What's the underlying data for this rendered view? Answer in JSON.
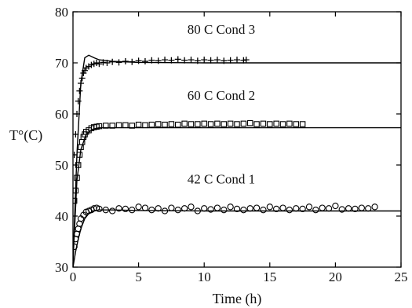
{
  "chart_data": {
    "type": "scatter",
    "title": "",
    "xlabel": "Time (h)",
    "ylabel": "T°(C)",
    "xlim": [
      0,
      25
    ],
    "ylim": [
      30,
      80
    ],
    "xticks": [
      0,
      5,
      10,
      15,
      20,
      25
    ],
    "yticks": [
      30,
      40,
      50,
      60,
      70,
      80
    ],
    "grid": false,
    "legend": "none",
    "annotations": [
      {
        "text": "80 C Cond 3",
        "x": 11.3,
        "y": 75.7
      },
      {
        "text": "60 C Cond 2",
        "x": 11.3,
        "y": 62.8
      },
      {
        "text": "42 C Cond 1",
        "x": 11.3,
        "y": 46.4
      }
    ],
    "series": [
      {
        "marker": "plus",
        "color": "#000000",
        "x": [
          0.1,
          0.2,
          0.3,
          0.4,
          0.5,
          0.6,
          0.7,
          0.8,
          0.9,
          1.0,
          1.2,
          1.4,
          1.6,
          1.8,
          2.0,
          2.3,
          2.6,
          3.0,
          3.5,
          4.0,
          4.5,
          5.0,
          5.5,
          6.0,
          6.5,
          7.0,
          7.5,
          8.0,
          8.5,
          9.0,
          9.5,
          10.0,
          10.5,
          11.0,
          11.5,
          12.0,
          12.5,
          13.0,
          13.2
        ],
        "y": [
          52.0,
          56.0,
          60.0,
          62.5,
          64.5,
          66.0,
          67.0,
          68.0,
          68.5,
          69.0,
          69.3,
          69.6,
          69.8,
          70.0,
          69.8,
          70.1,
          70.0,
          70.2,
          70.1,
          70.3,
          70.2,
          70.4,
          70.3,
          70.5,
          70.4,
          70.6,
          70.5,
          70.7,
          70.5,
          70.6,
          70.4,
          70.6,
          70.5,
          70.6,
          70.4,
          70.5,
          70.6,
          70.5,
          70.6
        ],
        "fit": {
          "x": [
            0,
            0.3,
            0.6,
            0.9,
            1.2,
            1.6,
            2.0,
            3.0,
            5.0,
            10.0,
            25.0
          ],
          "y": [
            31,
            52,
            66,
            71,
            71.5,
            71.0,
            70.6,
            70.3,
            70.1,
            70.0,
            70.0
          ]
        }
      },
      {
        "marker": "square",
        "color": "#000000",
        "x": [
          0.1,
          0.2,
          0.3,
          0.4,
          0.5,
          0.6,
          0.7,
          0.8,
          0.9,
          1.0,
          1.2,
          1.4,
          1.6,
          1.8,
          2.0,
          2.5,
          3.0,
          3.5,
          4.0,
          4.5,
          5.0,
          5.5,
          6.0,
          6.5,
          7.0,
          7.5,
          8.0,
          8.5,
          9.0,
          9.5,
          10.0,
          10.5,
          11.0,
          11.5,
          12.0,
          12.5,
          13.0,
          13.5,
          14.0,
          14.5,
          15.0,
          15.5,
          16.0,
          16.5,
          17.0,
          17.5
        ],
        "y": [
          43.0,
          45.0,
          47.5,
          50.0,
          52.0,
          53.5,
          54.5,
          55.5,
          56.0,
          56.5,
          56.8,
          57.2,
          57.4,
          57.5,
          57.6,
          57.7,
          57.7,
          57.8,
          57.8,
          57.7,
          57.9,
          57.8,
          57.9,
          58.0,
          57.9,
          58.0,
          57.9,
          58.1,
          58.0,
          58.0,
          58.1,
          58.0,
          58.1,
          58.0,
          58.1,
          58.0,
          58.1,
          58.2,
          58.0,
          58.1,
          58.0,
          58.1,
          58.0,
          58.1,
          58.0,
          58.0
        ],
        "fit": {
          "x": [
            0,
            0.3,
            0.6,
            1.0,
            1.5,
            2.0,
            3.0,
            5.0,
            10.0,
            25.0
          ],
          "y": [
            31,
            47,
            53,
            56.0,
            57.0,
            57.3,
            57.3,
            57.3,
            57.3,
            57.3
          ]
        }
      },
      {
        "marker": "circle",
        "color": "#000000",
        "x": [
          0.1,
          0.2,
          0.3,
          0.4,
          0.5,
          0.6,
          0.8,
          1.0,
          1.2,
          1.4,
          1.6,
          1.8,
          2.0,
          2.5,
          3.0,
          3.5,
          4.0,
          4.5,
          5.0,
          5.5,
          6.0,
          6.5,
          7.0,
          7.5,
          8.0,
          8.5,
          9.0,
          9.5,
          10.0,
          10.5,
          11.0,
          11.5,
          12.0,
          12.5,
          13.0,
          13.5,
          14.0,
          14.5,
          15.0,
          15.5,
          16.0,
          16.5,
          17.0,
          17.5,
          18.0,
          18.5,
          19.0,
          19.5,
          20.0,
          20.5,
          21.0,
          21.5,
          22.0,
          22.5,
          23.0
        ],
        "y": [
          34.0,
          35.5,
          36.5,
          37.5,
          38.5,
          39.5,
          40.2,
          40.8,
          41.0,
          41.2,
          41.5,
          41.6,
          41.4,
          41.2,
          41.0,
          41.5,
          41.4,
          41.2,
          41.8,
          41.6,
          41.2,
          41.5,
          41.0,
          41.6,
          41.2,
          41.5,
          41.8,
          41.0,
          41.5,
          41.3,
          41.6,
          41.2,
          41.8,
          41.4,
          41.2,
          41.5,
          41.6,
          41.2,
          41.8,
          41.4,
          41.6,
          41.2,
          41.5,
          41.4,
          41.8,
          41.2,
          41.6,
          41.5,
          42.0,
          41.3,
          41.5,
          41.4,
          41.6,
          41.5,
          41.8
        ],
        "fit": {
          "x": [
            0,
            0.2,
            0.4,
            0.6,
            0.9,
            1.2,
            1.6,
            2.0,
            3.0,
            5.0,
            10.0,
            25.0
          ],
          "y": [
            30,
            33,
            35.5,
            37.5,
            39.5,
            40.5,
            41.0,
            41.2,
            41.2,
            41.1,
            41.0,
            41.0
          ]
        }
      }
    ]
  }
}
